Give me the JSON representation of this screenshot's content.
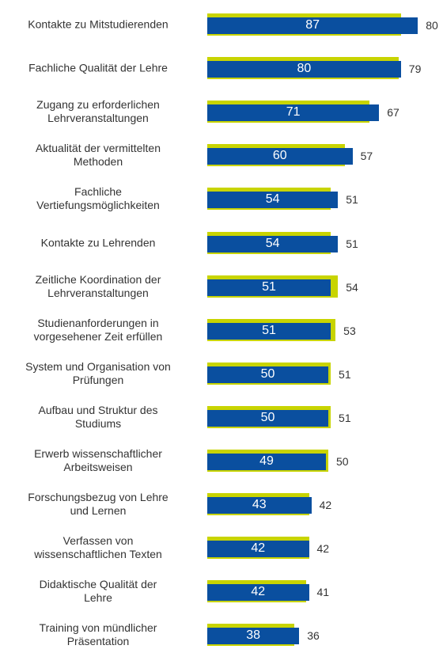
{
  "chart_data": {
    "type": "bar",
    "categories": [
      "Kontakte zu Mitstudierenden",
      "Fachliche Qualität der Lehre",
      "Zugang zu erforderlichen\nLehrveranstaltungen",
      "Aktualität der vermittelten\nMethoden",
      "Fachliche\nVertiefungsmöglichkeiten",
      "Kontakte zu Lehrenden",
      "Zeitliche Koordination der\nLehrveranstaltungen",
      "Studienanforderungen in\nvorgesehener Zeit erfüllen",
      "System und Organisation von\nPrüfungen",
      "Aufbau und Struktur des\nStudiums",
      "Erwerb wissenschaftlicher\nArbeitsweisen",
      "Forschungsbezug von Lehre\nund Lernen",
      "Verfassen von\nwissenschaftlichen Texten",
      "Didaktische Qualität der\nLehre",
      "Training von mündlicher\nPräsentation"
    ],
    "series": [
      {
        "color": "#c8d400",
        "values": [
          80,
          79,
          67,
          57,
          51,
          51,
          54,
          53,
          51,
          51,
          50,
          42,
          42,
          41,
          36
        ]
      },
      {
        "color": "#0a4f9f",
        "values": [
          87,
          80,
          71,
          60,
          54,
          54,
          51,
          51,
          50,
          50,
          49,
          43,
          42,
          42,
          38
        ]
      }
    ],
    "xlim": [
      0,
      100
    ]
  }
}
